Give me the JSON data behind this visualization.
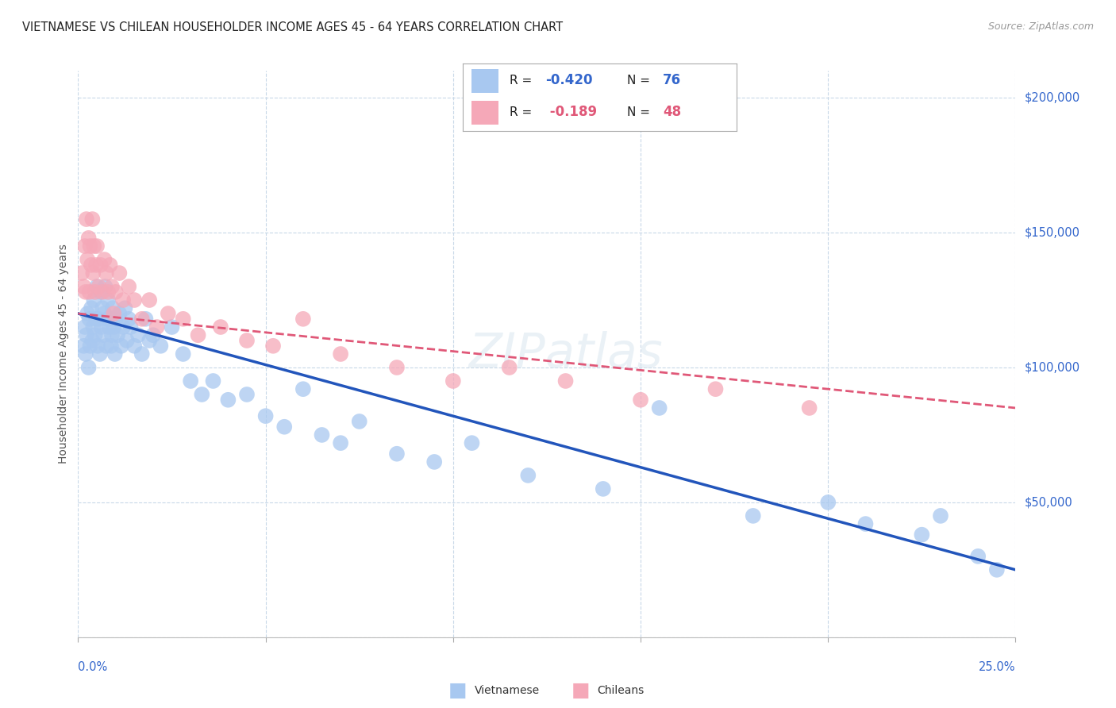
{
  "title": "VIETNAMESE VS CHILEAN HOUSEHOLDER INCOME AGES 45 - 64 YEARS CORRELATION CHART",
  "source": "Source: ZipAtlas.com",
  "ylabel": "Householder Income Ages 45 - 64 years",
  "xlim": [
    0.0,
    25.0
  ],
  "ylim": [
    0,
    210000
  ],
  "viet_R": "-0.420",
  "viet_N": "76",
  "chile_R": "-0.189",
  "chile_N": "48",
  "viet_color": "#a8c8f0",
  "chile_color": "#f5a8b8",
  "viet_line_color": "#2255bb",
  "chile_line_color": "#e05878",
  "background_color": "#ffffff",
  "grid_color": "#c8d8e8",
  "title_color": "#222222",
  "label_color": "#3366cc",
  "watermark": "ZIPatlas",
  "viet_x": [
    0.15,
    0.18,
    0.2,
    0.22,
    0.25,
    0.28,
    0.3,
    0.32,
    0.35,
    0.38,
    0.4,
    0.42,
    0.45,
    0.48,
    0.5,
    0.52,
    0.55,
    0.58,
    0.6,
    0.62,
    0.65,
    0.68,
    0.7,
    0.72,
    0.75,
    0.78,
    0.8,
    0.82,
    0.85,
    0.88,
    0.9,
    0.92,
    0.95,
    0.98,
    1.0,
    1.05,
    1.1,
    1.15,
    1.2,
    1.25,
    1.3,
    1.35,
    1.4,
    1.5,
    1.6,
    1.7,
    1.8,
    1.9,
    2.0,
    2.2,
    2.5,
    2.8,
    3.0,
    3.3,
    3.6,
    4.0,
    4.5,
    5.0,
    5.5,
    6.0,
    6.5,
    7.0,
    7.5,
    8.5,
    9.5,
    10.5,
    12.0,
    14.0,
    15.5,
    18.0,
    20.0,
    21.0,
    22.5,
    23.0,
    24.0,
    24.5
  ],
  "viet_y": [
    108000,
    115000,
    105000,
    112000,
    120000,
    100000,
    118000,
    108000,
    122000,
    110000,
    115000,
    125000,
    112000,
    118000,
    130000,
    108000,
    118000,
    105000,
    128000,
    115000,
    122000,
    112000,
    120000,
    130000,
    108000,
    118000,
    125000,
    115000,
    118000,
    108000,
    112000,
    122000,
    115000,
    105000,
    118000,
    112000,
    120000,
    108000,
    115000,
    122000,
    110000,
    118000,
    115000,
    108000,
    112000,
    105000,
    118000,
    110000,
    112000,
    108000,
    115000,
    105000,
    95000,
    90000,
    95000,
    88000,
    90000,
    82000,
    78000,
    92000,
    75000,
    72000,
    80000,
    68000,
    65000,
    72000,
    60000,
    55000,
    85000,
    45000,
    50000,
    42000,
    38000,
    45000,
    30000,
    25000
  ],
  "chile_x": [
    0.1,
    0.15,
    0.18,
    0.2,
    0.22,
    0.25,
    0.28,
    0.3,
    0.32,
    0.35,
    0.38,
    0.4,
    0.42,
    0.45,
    0.48,
    0.5,
    0.55,
    0.6,
    0.65,
    0.7,
    0.75,
    0.8,
    0.85,
    0.9,
    0.95,
    1.0,
    1.1,
    1.2,
    1.35,
    1.5,
    1.7,
    1.9,
    2.1,
    2.4,
    2.8,
    3.2,
    3.8,
    4.5,
    5.2,
    6.0,
    7.0,
    8.5,
    10.0,
    11.5,
    13.0,
    15.0,
    17.0,
    19.5
  ],
  "chile_y": [
    135000,
    130000,
    145000,
    128000,
    155000,
    140000,
    148000,
    128000,
    145000,
    138000,
    155000,
    135000,
    145000,
    128000,
    138000,
    145000,
    130000,
    138000,
    128000,
    140000,
    135000,
    128000,
    138000,
    130000,
    120000,
    128000,
    135000,
    125000,
    130000,
    125000,
    118000,
    125000,
    115000,
    120000,
    118000,
    112000,
    115000,
    110000,
    108000,
    118000,
    105000,
    100000,
    95000,
    100000,
    95000,
    88000,
    92000,
    85000
  ]
}
